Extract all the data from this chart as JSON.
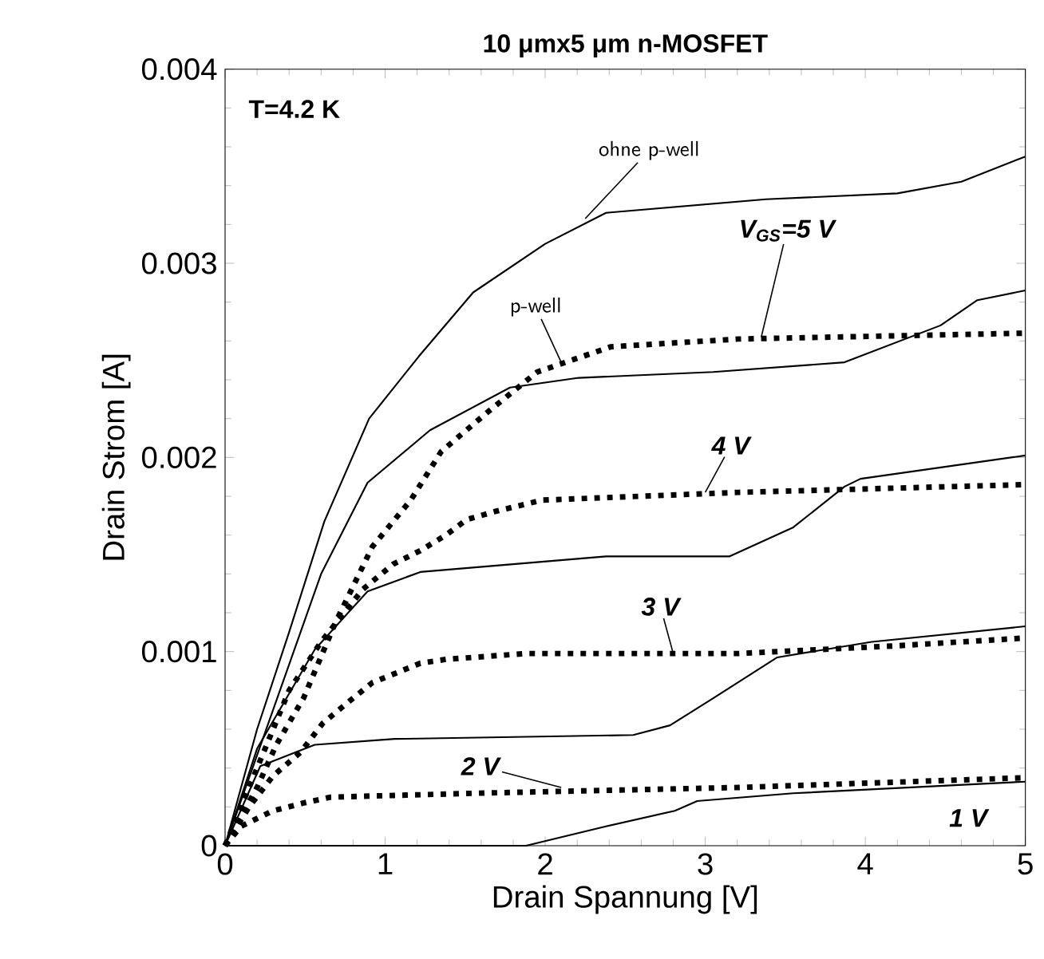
{
  "chart_data": {
    "type": "line",
    "title": "10 μmx5 μm n-MOSFET",
    "xlabel": "Drain Spannung [V]",
    "ylabel": "Drain Strom [A]",
    "xlim": [
      0,
      5
    ],
    "ylim": [
      0,
      0.004
    ],
    "xticks": [
      0,
      1,
      2,
      3,
      4,
      5
    ],
    "yticks": [
      0,
      0.001,
      0.002,
      0.003,
      0.004
    ],
    "grid": false,
    "marker": "none",
    "series": [
      {
        "color": "#000000",
        "line_style": "solid",
        "x": [
          0,
          0.2,
          0.4,
          0.62,
          0.9,
          1.21,
          1.55,
          2.0,
          2.38,
          3.38,
          4.2,
          4.6,
          5
        ],
        "values": [
          0,
          0.0006,
          0.0011,
          0.00167,
          0.0022,
          0.00252,
          0.00285,
          0.0031,
          0.00326,
          0.00333,
          0.00336,
          0.00342,
          0.00355
        ]
      },
      {
        "color": "#000000",
        "line_style": "solid",
        "x": [
          0,
          0.3,
          0.6,
          0.89,
          1.28,
          1.78,
          2.21,
          3.05,
          3.87,
          4.47,
          4.7,
          5
        ],
        "values": [
          0,
          0.0007,
          0.0014,
          0.00187,
          0.00214,
          0.00236,
          0.00241,
          0.00244,
          0.00249,
          0.00268,
          0.00281,
          0.00286
        ]
      },
      {
        "color": "#000000",
        "line_style": "solid",
        "x": [
          0,
          0.2,
          0.56,
          0.89,
          1.22,
          2.38,
          3.15,
          3.55,
          3.87,
          3.97,
          5
        ],
        "values": [
          0,
          0.0005,
          0.00101,
          0.00131,
          0.00141,
          0.00149,
          0.00149,
          0.00164,
          0.00185,
          0.00189,
          0.00201
        ]
      },
      {
        "color": "#000000",
        "line_style": "solid",
        "x": [
          0,
          0.22,
          0.56,
          1.06,
          2.55,
          2.78,
          3.05,
          3.45,
          4.04,
          5
        ],
        "values": [
          0,
          0.00041,
          0.00052,
          0.00055,
          0.00057,
          0.00062,
          0.00076,
          0.00097,
          0.00105,
          0.00113
        ]
      },
      {
        "color": "#000000",
        "line_style": "solid",
        "x": [
          0,
          1.0,
          1.6,
          1.88,
          2.38,
          2.81,
          2.95,
          3.55,
          5
        ],
        "values": [
          0,
          0,
          0,
          0,
          0.0001,
          0.00018,
          0.00023,
          0.00027,
          0.00033
        ]
      },
      {
        "color": "#000000",
        "line_style": "dotted",
        "x": [
          0,
          0.2,
          0.32,
          0.49,
          0.69,
          0.92,
          1.16,
          1.35,
          1.65,
          1.95,
          2.41,
          3.21,
          5
        ],
        "values": [
          0,
          0.0003,
          0.00052,
          0.00076,
          0.00115,
          0.00154,
          0.00178,
          0.00203,
          0.00224,
          0.00244,
          0.00257,
          0.00261,
          0.00264
        ]
      },
      {
        "color": "#000000",
        "line_style": "dotted",
        "x": [
          0,
          0.2,
          0.4,
          0.6,
          0.86,
          1.05,
          1.22,
          1.38,
          1.51,
          1.68,
          1.98,
          3.21,
          5
        ],
        "values": [
          0,
          0.0004,
          0.0008,
          0.00105,
          0.00132,
          0.00145,
          0.00152,
          0.0016,
          0.00168,
          0.00172,
          0.00178,
          0.00182,
          0.00186
        ]
      },
      {
        "color": "#000000",
        "line_style": "dotted",
        "x": [
          0,
          0.15,
          0.3,
          0.47,
          0.61,
          0.77,
          0.92,
          1.07,
          1.22,
          1.38,
          1.88,
          3.21,
          4.2,
          5
        ],
        "values": [
          0,
          0.0002,
          0.00036,
          0.00048,
          0.00063,
          0.00074,
          0.00084,
          0.00089,
          0.00094,
          0.00096,
          0.00099,
          0.00099,
          0.00103,
          0.00107
        ]
      },
      {
        "color": "#000000",
        "line_style": "dotted",
        "x": [
          0,
          0.1,
          0.3,
          0.49,
          0.66,
          1.55,
          3.21,
          5
        ],
        "values": [
          0,
          0.0001,
          0.00018,
          0.00022,
          0.00025,
          0.00027,
          0.0003,
          0.00035
        ]
      }
    ],
    "annotations": [
      "**T=4.2 K**",
      {
        "text": "ohne p-well",
        "x": 2.25,
        "y": 0.00323
      },
      {
        "text": "p-well",
        "x": 2.1,
        "y": 0.00249
      },
      {
        "text": "V$_{GS}$=5 V",
        "x": 3.35,
        "y": 0.00262
      },
      {
        "text": "4 V",
        "x": 3.0,
        "y": 0.00182
      },
      {
        "text": "3 V",
        "x": 2.8,
        "y": 0.00099
      },
      {
        "text": "2 V",
        "x": 2.1,
        "y": 0.0003
      },
      {
        "text": "1 V",
        "x": 4.75,
        "y": 0.00034
      }
    ]
  }
}
